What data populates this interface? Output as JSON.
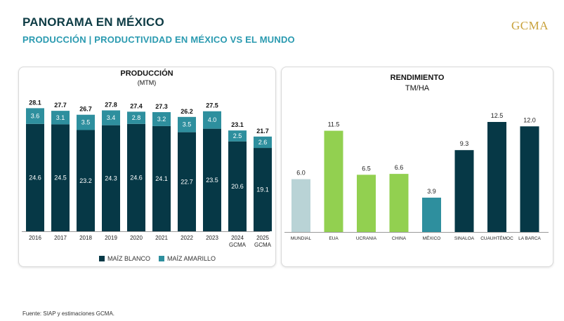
{
  "header": {
    "title": "PANORAMA EN MÉXICO",
    "subtitle": "PRODUCCIÓN | PRODUCTIVIDAD EN MÉXICO VS EL MUNDO",
    "logo": "GCMA"
  },
  "footer": {
    "source": "Fuente: SIAP y estimaciones GCMA."
  },
  "colors": {
    "dark": "#063846",
    "teal": "#2e8f9e",
    "green": "#92d050",
    "light": "#b9d3d6",
    "title": "#0d3b44",
    "accent": "#2a9ab0"
  },
  "chart_data": [
    {
      "type": "bar",
      "stacked": true,
      "title": "PRODUCCIÓN",
      "subtitle": "(MTM)",
      "categories": [
        "2016",
        "2017",
        "2018",
        "2019",
        "2020",
        "2021",
        "2022",
        "2023",
        "2024\nGCMA",
        "2025\nGCMA"
      ],
      "series": [
        {
          "name": "MAÍZ BLANCO",
          "color": "#063846",
          "values": [
            24.6,
            24.5,
            23.2,
            24.3,
            24.6,
            24.1,
            22.7,
            23.5,
            20.6,
            19.1
          ]
        },
        {
          "name": "MAÍZ AMARILLO",
          "color": "#2e8f9e",
          "values": [
            3.6,
            3.1,
            3.5,
            3.4,
            2.8,
            3.2,
            3.5,
            4.0,
            2.5,
            2.6
          ]
        }
      ],
      "totals": [
        "28.1",
        "27.7",
        "26.7",
        "27.8",
        "27.4",
        "27.3",
        "26.2",
        "27.5",
        "23.1",
        "21.7"
      ],
      "ylim": [
        0,
        28.1
      ],
      "legend": "bottom"
    },
    {
      "type": "bar",
      "title": "RENDIMIENTO",
      "subtitle": "TM/HA",
      "categories": [
        "MUNDIAL",
        "EUA",
        "UCRANIA",
        "CHINA",
        "MÉXICO",
        "SINALOA",
        "CUAUHTÉMOC",
        "LA BARCA"
      ],
      "values": [
        6.0,
        11.5,
        6.5,
        6.6,
        3.9,
        9.3,
        12.5,
        12.0
      ],
      "colors": [
        "#b9d3d6",
        "#92d050",
        "#92d050",
        "#92d050",
        "#2e8f9e",
        "#063846",
        "#063846",
        "#063846"
      ],
      "ylim": [
        0,
        12.5
      ]
    }
  ]
}
